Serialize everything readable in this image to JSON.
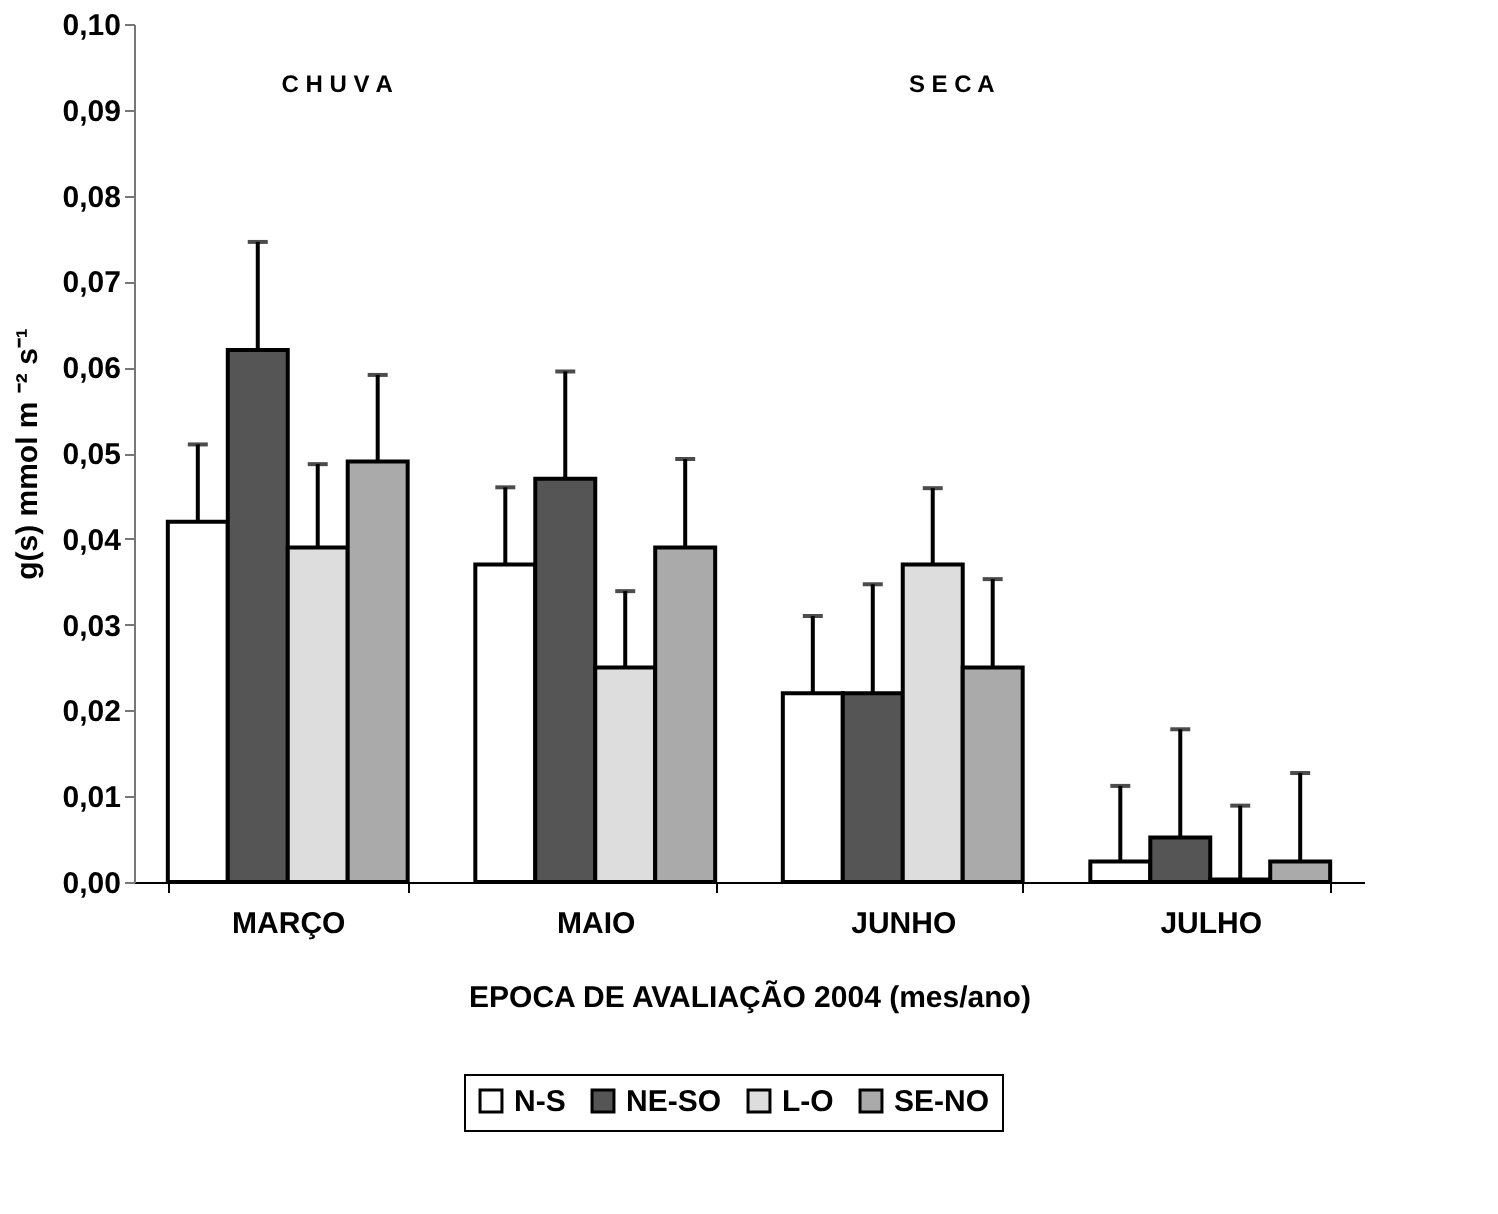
{
  "chart_data": {
    "type": "bar",
    "categories": [
      "MARÇO",
      "MAIO",
      "JUNHO",
      "JULHO"
    ],
    "series": [
      {
        "name": "N-S",
        "color": "#ffffff",
        "values": [
          0.042,
          0.037,
          0.022,
          0.0024
        ],
        "errors": [
          [
            0.042,
            0.051
          ],
          [
            0.037,
            0.046
          ],
          [
            0.022,
            0.031
          ],
          [
            0.0024,
            0.0112
          ]
        ]
      },
      {
        "name": "NE-SO",
        "color": "#555555",
        "values": [
          0.062,
          0.047,
          0.022,
          0.0052
        ],
        "errors": [
          [
            0.062,
            0.0746
          ],
          [
            0.047,
            0.0595
          ],
          [
            0.022,
            0.0347
          ],
          [
            0.0052,
            0.0178
          ]
        ]
      },
      {
        "name": "L-O",
        "color": "#dddddd",
        "values": [
          0.039,
          0.025,
          0.037,
          0.0003
        ],
        "errors": [
          [
            0.039,
            0.0487
          ],
          [
            0.025,
            0.0339
          ],
          [
            0.037,
            0.0459
          ],
          [
            0.0003,
            0.0089
          ]
        ]
      },
      {
        "name": "SE-NO",
        "color": "#aaaaaa",
        "values": [
          0.049,
          0.039,
          0.025,
          0.0024
        ],
        "errors": [
          [
            0.049,
            0.0591
          ],
          [
            0.039,
            0.0493
          ],
          [
            0.025,
            0.0353
          ],
          [
            0.0024,
            0.0127
          ]
        ]
      }
    ],
    "ylim": [
      0,
      0.1
    ],
    "yticks": [
      {
        "value": 0,
        "label": "0,00"
      },
      {
        "value": 0.01,
        "label": "0,01"
      },
      {
        "value": 0.02,
        "label": "0,02"
      },
      {
        "value": 0.03,
        "label": "0,03"
      },
      {
        "value": 0.04,
        "label": "0,04"
      },
      {
        "value": 0.05,
        "label": "0,05"
      },
      {
        "value": 0.06,
        "label": "0,06"
      },
      {
        "value": 0.07,
        "label": "0,07"
      },
      {
        "value": 0.08,
        "label": "0,08"
      },
      {
        "value": 0.09,
        "label": "0,09"
      },
      {
        "value": 0.1,
        "label": "0,10"
      }
    ],
    "xlabel": "EPOCA DE AVALIAÇÃO 2004  (mes/ano)",
    "ylabel": "g(s) mmol m ⁻² s⁻¹",
    "annotations": [
      "C H U V A",
      "S E C A"
    ],
    "legend": "bottom",
    "grid": false
  }
}
